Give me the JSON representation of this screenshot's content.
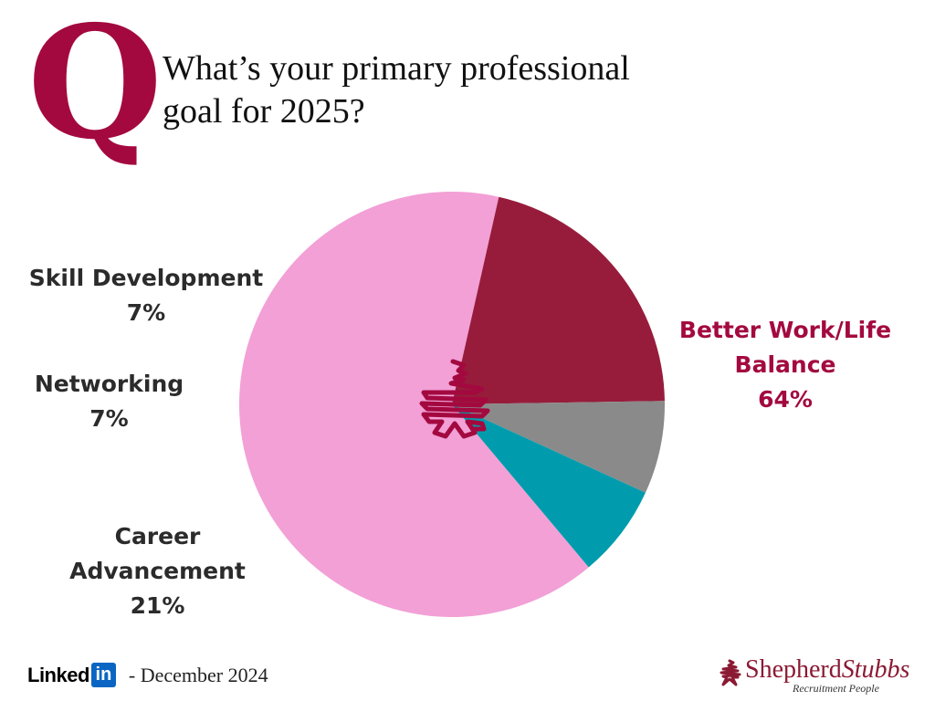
{
  "header": {
    "badge_letter": "Q",
    "question_lines": [
      "What’s your primary professional",
      "goal for 2025?"
    ]
  },
  "chart_data": {
    "type": "pie",
    "title": "What’s your primary professional goal for 2025?",
    "slices": [
      {
        "label_lines": [
          "Better Work/Life",
          "Balance"
        ],
        "value": 64,
        "value_label": "64%",
        "color": "#f2a0d6"
      },
      {
        "label_lines": [
          "Career",
          "Advancement"
        ],
        "value": 21,
        "value_label": "21%",
        "color": "#971c3b"
      },
      {
        "label_lines": [
          "Networking"
        ],
        "value": 7,
        "value_label": "7%",
        "color": "#8a8a8a"
      },
      {
        "label_lines": [
          "Skill Development"
        ],
        "value": 7,
        "value_label": "7%",
        "color": "#009cad"
      }
    ],
    "start_angle_deg": 140,
    "direction": "clockwise",
    "center_icon": "shepherd-stubbs-mark-icon",
    "accent_label_color": "#a3093f"
  },
  "footer": {
    "linkedin_text": "Linked",
    "linkedin_box": "in",
    "date_text": "- December 2024",
    "brand_name_1": "Shepherd",
    "brand_name_2": "Stubbs",
    "brand_tagline": "Recruitment People",
    "brand_color": "#8b1a33"
  }
}
